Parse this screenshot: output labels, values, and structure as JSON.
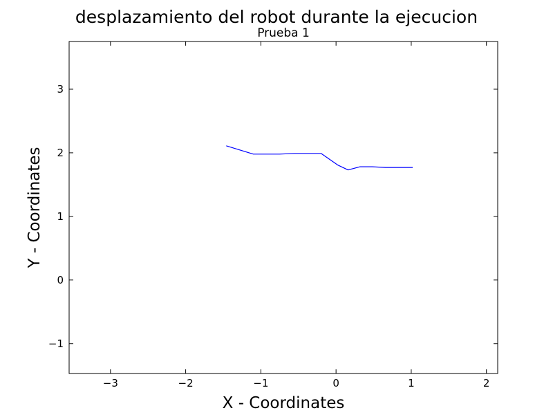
{
  "chart_data": {
    "type": "line",
    "title": "desplazamiento del robot durante la ejecucion",
    "subtitle": "Prueba 1",
    "xlabel": "X - Coordinates",
    "ylabel": "Y - Coordinates",
    "xlim": [
      -3.55,
      2.15
    ],
    "ylim": [
      -1.47,
      3.75
    ],
    "xticks": [
      -3,
      -2,
      -1,
      0,
      1,
      2
    ],
    "yticks": [
      -1,
      0,
      1,
      2,
      3
    ],
    "xtick_labels": [
      "−3",
      "−2",
      "−1",
      "0",
      "1",
      "2"
    ],
    "ytick_labels": [
      "−1",
      "0",
      "1",
      "2",
      "3"
    ],
    "grid": false,
    "series": [
      {
        "color": "#0000ff",
        "x": [
          -1.46,
          -1.1,
          -0.75,
          -0.55,
          -0.2,
          0.02,
          0.16,
          0.32,
          0.48,
          0.66,
          0.85,
          1.02
        ],
        "y": [
          2.11,
          1.98,
          1.98,
          1.99,
          1.99,
          1.81,
          1.73,
          1.78,
          1.78,
          1.77,
          1.77,
          1.77
        ]
      }
    ]
  }
}
